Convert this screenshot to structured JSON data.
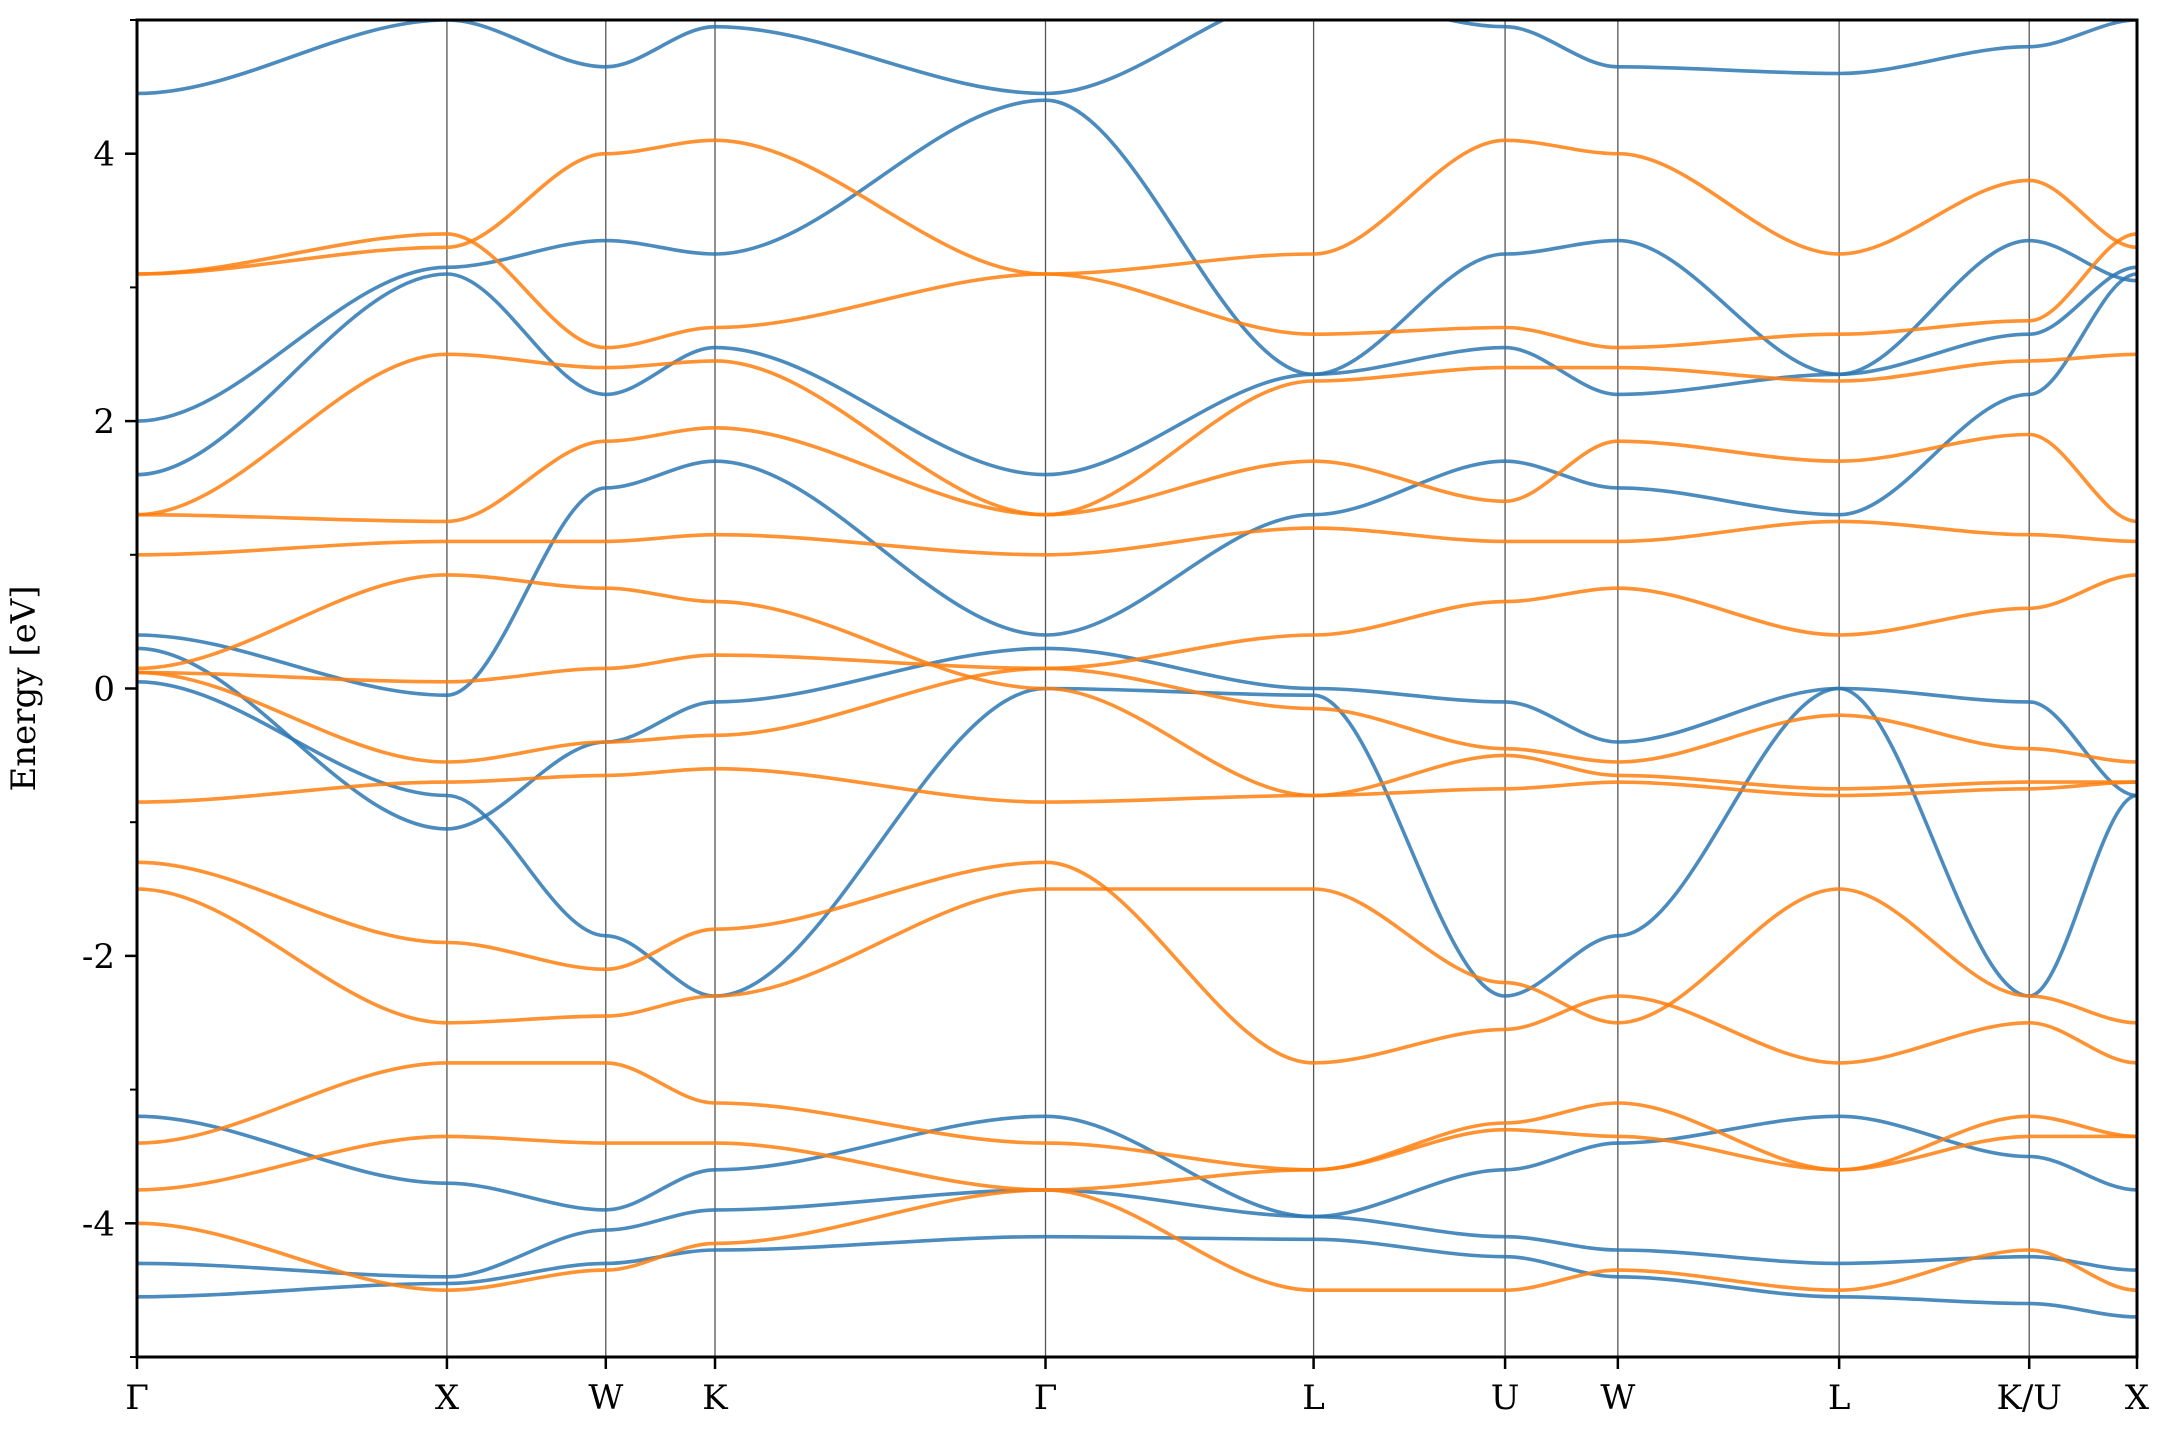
{
  "chart_data": {
    "type": "line",
    "title": "",
    "xlabel": "",
    "ylabel": "Energy [eV]",
    "ylim": [
      -5,
      5
    ],
    "xlim": [
      0,
      2.82
    ],
    "yticks": [
      -4,
      -2,
      0,
      2,
      4
    ],
    "yticks_minor": [
      -5,
      -3,
      -1,
      1,
      3,
      5
    ],
    "kpoints": [
      {
        "label": "Γ",
        "x": 0.0
      },
      {
        "label": "X",
        "x": 0.437
      },
      {
        "label": "W",
        "x": 0.661
      },
      {
        "label": "K",
        "x": 0.815
      },
      {
        "label": "Γ",
        "x": 1.281
      },
      {
        "label": "L",
        "x": 1.659
      },
      {
        "label": "U",
        "x": 1.929
      },
      {
        "label": "W",
        "x": 2.088
      },
      {
        "label": "L",
        "x": 2.4
      },
      {
        "label": "K/U",
        "x": 2.668
      },
      {
        "label": "X",
        "x": 2.82
      }
    ],
    "grid": "vertical lines at k-points",
    "legend": "none",
    "colors": {
      "blue": "#2c77b1",
      "orange": "#ff7f0e"
    },
    "series": [
      {
        "color": "#2c77b1",
        "values": [
          -4.55,
          -4.45,
          -4.3,
          -4.2,
          -4.1,
          -4.12,
          -4.25,
          -4.4,
          -4.55,
          -4.6,
          -4.7
        ]
      },
      {
        "color": "#2c77b1",
        "values": [
          -4.3,
          -4.4,
          -4.05,
          -3.9,
          -3.75,
          -3.95,
          -4.1,
          -4.2,
          -4.3,
          -4.25,
          -4.35
        ]
      },
      {
        "color": "#2c77b1",
        "values": [
          -3.2,
          -3.7,
          -3.9,
          -3.6,
          -3.2,
          -3.95,
          -3.6,
          -3.4,
          -3.2,
          -3.5,
          -3.75
        ]
      },
      {
        "color": "#2c77b1",
        "values": [
          0.05,
          -0.8,
          -1.85,
          -2.3,
          0.0,
          -0.05,
          -2.3,
          -1.85,
          0.0,
          -2.3,
          -0.8
        ]
      },
      {
        "color": "#2c77b1",
        "values": [
          0.4,
          -0.05,
          1.5,
          1.7,
          0.4,
          1.3,
          1.7,
          1.5,
          1.3,
          2.2,
          3.1
        ]
      },
      {
        "color": "#2c77b1",
        "values": [
          0.3,
          -1.05,
          -0.4,
          -0.1,
          0.3,
          0.0,
          -0.1,
          -0.4,
          0.0,
          -0.1,
          -0.8
        ]
      },
      {
        "color": "#2c77b1",
        "values": [
          1.6,
          3.1,
          2.2,
          2.55,
          1.6,
          2.35,
          2.55,
          2.2,
          2.35,
          2.65,
          3.15
        ]
      },
      {
        "color": "#2c77b1",
        "values": [
          4.45,
          5.0,
          4.65,
          4.95,
          4.45,
          5.2,
          4.95,
          4.65,
          4.6,
          4.8,
          5.0
        ]
      },
      {
        "color": "#2c77b1",
        "values": [
          2.0,
          3.15,
          3.35,
          3.25,
          4.4,
          2.35,
          3.25,
          3.35,
          2.35,
          3.35,
          3.05
        ]
      },
      {
        "color": "#ff7f0e",
        "values": [
          0.12,
          -0.55,
          -0.4,
          -0.35,
          0.15,
          -0.15,
          -0.45,
          -0.55,
          -0.2,
          -0.45,
          -0.55
        ]
      },
      {
        "color": "#ff7f0e",
        "values": [
          0.12,
          0.05,
          0.15,
          0.25,
          0.15,
          0.4,
          0.65,
          0.75,
          0.4,
          0.6,
          0.85
        ]
      },
      {
        "color": "#ff7f0e",
        "values": [
          0.15,
          0.85,
          0.75,
          0.65,
          0.0,
          -0.8,
          -0.5,
          -0.65,
          -0.75,
          -0.7,
          -0.7
        ]
      },
      {
        "color": "#ff7f0e",
        "values": [
          -0.85,
          -0.7,
          -0.65,
          -0.6,
          -0.85,
          -0.8,
          -0.75,
          -0.7,
          -0.8,
          -0.75,
          -0.7
        ]
      },
      {
        "color": "#ff7f0e",
        "values": [
          1.0,
          1.1,
          1.1,
          1.15,
          1.0,
          1.2,
          1.1,
          1.1,
          1.25,
          1.15,
          1.1
        ]
      },
      {
        "color": "#ff7f0e",
        "values": [
          1.3,
          1.25,
          1.85,
          1.95,
          1.3,
          1.7,
          1.4,
          1.85,
          1.7,
          1.9,
          1.25
        ]
      },
      {
        "color": "#ff7f0e",
        "values": [
          3.1,
          3.4,
          2.55,
          2.7,
          3.1,
          2.65,
          2.7,
          2.55,
          2.65,
          2.75,
          3.4
        ]
      },
      {
        "color": "#ff7f0e",
        "values": [
          1.3,
          2.5,
          2.4,
          2.45,
          1.3,
          2.3,
          2.4,
          2.4,
          2.3,
          2.45,
          2.5
        ]
      },
      {
        "color": "#ff7f0e",
        "values": [
          3.1,
          3.3,
          4.0,
          4.1,
          3.1,
          3.25,
          4.1,
          4.0,
          3.25,
          3.8,
          3.3
        ]
      },
      {
        "color": "#ff7f0e",
        "values": [
          -1.5,
          -2.5,
          -2.45,
          -2.3,
          -1.5,
          -1.5,
          -2.2,
          -2.5,
          -1.5,
          -2.3,
          -2.5
        ]
      },
      {
        "color": "#ff7f0e",
        "values": [
          -1.3,
          -1.9,
          -2.1,
          -1.8,
          -1.3,
          -2.8,
          -2.55,
          -2.3,
          -2.8,
          -2.5,
          -2.8
        ]
      },
      {
        "color": "#ff7f0e",
        "values": [
          -3.4,
          -2.8,
          -2.8,
          -3.1,
          -3.4,
          -3.6,
          -3.25,
          -3.1,
          -3.6,
          -3.2,
          -3.35
        ]
      },
      {
        "color": "#ff7f0e",
        "values": [
          -3.75,
          -3.35,
          -3.4,
          -3.4,
          -3.75,
          -3.6,
          -3.3,
          -3.35,
          -3.6,
          -3.35,
          -3.35
        ]
      },
      {
        "color": "#ff7f0e",
        "values": [
          -4.0,
          -4.5,
          -4.35,
          -4.15,
          -3.75,
          -4.5,
          -4.5,
          -4.35,
          -4.5,
          -4.2,
          -4.5
        ]
      }
    ]
  }
}
